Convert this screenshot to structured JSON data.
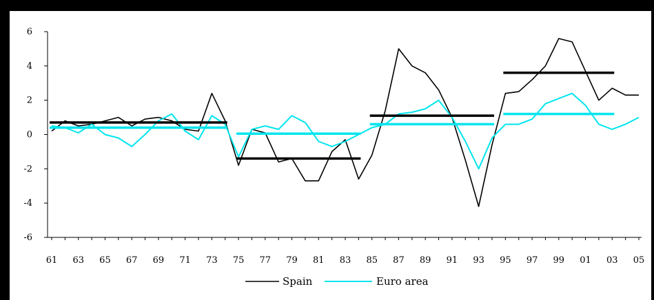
{
  "chart_data": {
    "type": "line",
    "title": "",
    "xlabel": "",
    "ylabel": "",
    "ylim": [
      -6,
      6
    ],
    "yticks": [
      -6,
      -4,
      -2,
      0,
      2,
      4,
      6
    ],
    "x": [
      1961,
      1962,
      1963,
      1964,
      1965,
      1966,
      1967,
      1968,
      1969,
      1970,
      1971,
      1972,
      1973,
      1974,
      1975,
      1976,
      1977,
      1978,
      1979,
      1980,
      1981,
      1982,
      1983,
      1984,
      1985,
      1986,
      1987,
      1988,
      1989,
      1990,
      1991,
      1992,
      1993,
      1994,
      1995,
      1996,
      1997,
      1998,
      1999,
      2000,
      2001,
      2002,
      2003,
      2004,
      2005
    ],
    "xtick_labels": [
      "61",
      "63",
      "65",
      "67",
      "69",
      "71",
      "73",
      "75",
      "77",
      "79",
      "81",
      "83",
      "85",
      "87",
      "89",
      "91",
      "93",
      "95",
      "97",
      "99",
      "01",
      "03",
      "05"
    ],
    "series": [
      {
        "name": "Spain",
        "color": "#000000",
        "values": [
          0.2,
          0.8,
          0.5,
          0.6,
          0.8,
          1.0,
          0.5,
          0.9,
          1.0,
          0.8,
          0.3,
          0.2,
          2.4,
          0.8,
          -1.8,
          0.3,
          0.1,
          -1.6,
          -1.4,
          -2.7,
          -2.7,
          -1.0,
          -0.3,
          -2.6,
          -1.2,
          1.4,
          5.0,
          4.0,
          3.6,
          2.6,
          1.0,
          -1.5,
          -4.2,
          -0.6,
          2.4,
          2.5,
          3.2,
          4.0,
          5.6,
          5.4,
          3.7,
          2.0,
          2.7,
          2.3,
          2.3
        ],
        "period_means": [
          {
            "from": 1961,
            "to": 1974,
            "value": 0.7
          },
          {
            "from": 1975,
            "to": 1984,
            "value": -1.4
          },
          {
            "from": 1985,
            "to": 1994,
            "value": 1.1
          },
          {
            "from": 1995,
            "to": 2003,
            "value": 3.6
          }
        ]
      },
      {
        "name": "Euro area",
        "color": "#00e5ee",
        "values": [
          0.5,
          0.4,
          0.1,
          0.6,
          0.0,
          -0.2,
          -0.7,
          0.0,
          0.8,
          1.2,
          0.2,
          -0.3,
          1.1,
          0.6,
          -1.3,
          0.3,
          0.5,
          0.3,
          1.1,
          0.7,
          -0.4,
          -0.7,
          -0.4,
          0.0,
          0.4,
          0.6,
          1.2,
          1.3,
          1.5,
          2.0,
          1.0,
          -0.4,
          -2.0,
          -0.2,
          0.6,
          0.6,
          0.9,
          1.8,
          2.1,
          2.4,
          1.7,
          0.6,
          0.3,
          0.6,
          1.0
        ],
        "period_means": [
          {
            "from": 1961,
            "to": 1974,
            "value": 0.4
          },
          {
            "from": 1975,
            "to": 1984,
            "value": 0.05
          },
          {
            "from": 1985,
            "to": 1994,
            "value": 0.6
          },
          {
            "from": 1995,
            "to": 2003,
            "value": 1.2
          }
        ]
      }
    ],
    "legend": {
      "placement": "bottom"
    },
    "grid": false
  }
}
